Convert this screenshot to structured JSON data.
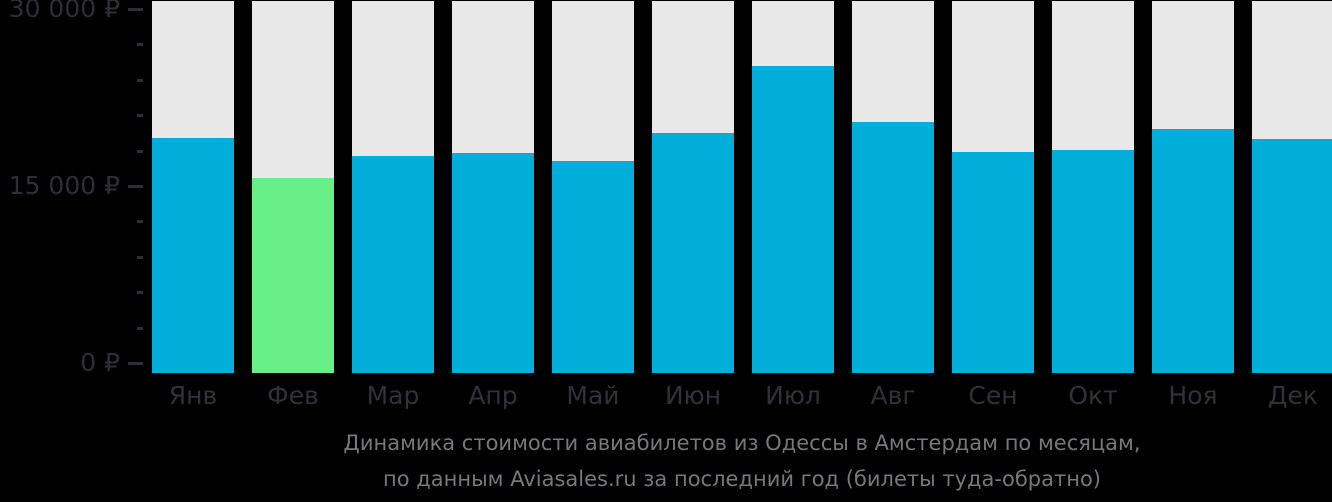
{
  "chart_data": {
    "type": "bar",
    "title": "Динамика стоимости авиабилетов из Одессы в Амстердам по месяцам, по данным Aviasales.ru за последний год (билеты туда-обратно)",
    "categories": [
      "Янв",
      "Фев",
      "Мар",
      "Апр",
      "Май",
      "Июн",
      "Июл",
      "Авг",
      "Сен",
      "Окт",
      "Ноя",
      "Дек"
    ],
    "values": [
      19400,
      16100,
      17900,
      18100,
      17500,
      19800,
      25300,
      20700,
      18200,
      18400,
      20100,
      19300
    ],
    "unit": "₽",
    "xlabel": "",
    "ylabel": "",
    "ylim": [
      0,
      30000
    ],
    "y_tick_labels_top_down": [
      "30 000 ₽",
      "15 000 ₽",
      "0 ₽"
    ],
    "y_major_tick_step": 15000,
    "y_minor_tick_step": 3000,
    "highlight_index": 1,
    "highlight_meaning": "lowest price month",
    "grid": "off",
    "legend": "none",
    "colors": {
      "bar": "#00aeda",
      "highlight": "#68ee86",
      "track": "#e8e8e8",
      "axis_text": "#2e2e36",
      "caption_text": "#75797c",
      "background": "#000000"
    }
  },
  "caption": {
    "line1": "Динамика стоимости авиабилетов из Одессы в Амстердам по месяцам,",
    "line2": "по данным Aviasales.ru за последний год (билеты туда-обратно)"
  }
}
